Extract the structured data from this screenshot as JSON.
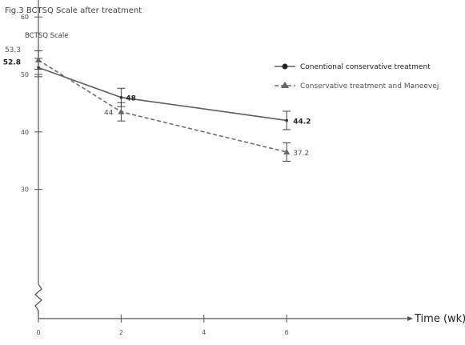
{
  "figure": {
    "title": "Fig.3 BCTSQ Scale after treatment"
  },
  "chart_data": {
    "type": "line",
    "title": "Fig.3 BCTSQ Scale after treatment",
    "xlabel": "Time (wk)",
    "ylabel": "BCTSQ Scale",
    "x": [
      0,
      2,
      6
    ],
    "xticks": [
      0,
      2,
      4,
      6
    ],
    "yticks": [
      30,
      40,
      50,
      60
    ],
    "xlim": [
      0,
      6.9
    ],
    "ylim": [
      20,
      67
    ],
    "y_axis_break": true,
    "grid": false,
    "legend_position": "top-right",
    "series": [
      {
        "name": "Conentional  conservative treatment",
        "values": [
          52.8,
          48,
          44.2
        ],
        "plotted_values": [
          51.2,
          46,
          42
        ],
        "error": [
          1.6,
          1.6,
          1.6
        ],
        "labels": [
          "52.8",
          "48",
          "44.2"
        ],
        "style": "solid",
        "marker": "circle",
        "color": "#606060"
      },
      {
        "name": "Conservative treatment and Maneevej",
        "values": [
          53.3,
          44,
          37.2
        ],
        "plotted_values": [
          52.5,
          43.5,
          36.5
        ],
        "error": [
          1.6,
          1.6,
          1.6
        ],
        "labels": [
          "53.3",
          "44",
          "37.2"
        ],
        "style": "dashed",
        "marker": "triangle",
        "color": "#707070"
      }
    ]
  }
}
